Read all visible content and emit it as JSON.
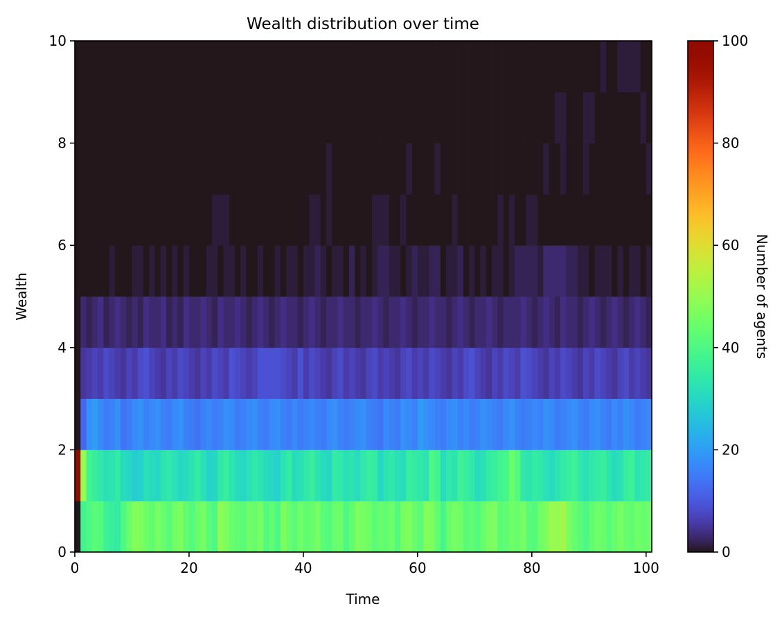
{
  "chart_data": {
    "type": "heatmap",
    "title": "Wealth distribution over time",
    "xlabel": "Time",
    "ylabel": "Wealth",
    "colorbar_label": "Number of agents",
    "colormap": "turbo",
    "xlim": [
      0,
      101
    ],
    "ylim": [
      0,
      10
    ],
    "clim": [
      0,
      100
    ],
    "xticks": [
      0,
      20,
      40,
      60,
      80,
      100
    ],
    "yticks": [
      0,
      2,
      4,
      6,
      8,
      10
    ],
    "colorbar_ticks": [
      0,
      20,
      40,
      60,
      80,
      100
    ],
    "time_steps": 101,
    "wealth_bins": [
      [
        0,
        1
      ],
      [
        1,
        2
      ],
      [
        2,
        3
      ],
      [
        3,
        4
      ],
      [
        4,
        5
      ],
      [
        5,
        6
      ],
      [
        6,
        7
      ],
      [
        7,
        8
      ],
      [
        8,
        9
      ],
      [
        9,
        10
      ]
    ],
    "counts_by_bin": {
      "0-1": [
        0,
        38,
        40,
        42,
        41,
        37,
        36,
        35,
        40,
        44,
        48,
        47,
        45,
        43,
        46,
        44,
        42,
        45,
        47,
        43,
        41,
        44,
        46,
        42,
        40,
        49,
        47,
        44,
        43,
        42,
        45,
        44,
        46,
        41,
        43,
        40,
        47,
        44,
        42,
        45,
        43,
        44,
        46,
        42,
        41,
        44,
        45,
        40,
        43,
        47,
        46,
        45,
        42,
        44,
        43,
        45,
        41,
        46,
        47,
        44,
        42,
        48,
        47,
        43,
        39,
        44,
        46,
        45,
        42,
        43,
        41,
        44,
        46,
        47,
        42,
        43,
        45,
        44,
        46,
        42,
        41,
        45,
        47,
        51,
        50,
        52,
        46,
        44,
        42,
        40,
        43,
        45,
        44,
        42,
        44,
        46,
        44,
        43,
        45,
        44,
        45
      ],
      "1-2": [
        100,
        50,
        38,
        36,
        34,
        32,
        33,
        35,
        31,
        30,
        28,
        29,
        32,
        31,
        30,
        33,
        34,
        32,
        30,
        31,
        33,
        35,
        32,
        29,
        30,
        34,
        36,
        33,
        31,
        30,
        32,
        34,
        33,
        31,
        30,
        29,
        33,
        35,
        31,
        32,
        34,
        36,
        33,
        31,
        30,
        35,
        34,
        32,
        33,
        31,
        34,
        36,
        35,
        30,
        33,
        34,
        32,
        31,
        36,
        35,
        34,
        33,
        40,
        38,
        31,
        34,
        33,
        37,
        36,
        34,
        31,
        32,
        35,
        36,
        38,
        39,
        44,
        41,
        34,
        33,
        35,
        34,
        32,
        31,
        33,
        35,
        36,
        37,
        34,
        32,
        34,
        35,
        36,
        33,
        31,
        32,
        36,
        37,
        33,
        34,
        35
      ],
      "2-3": [
        0,
        12,
        18,
        20,
        17,
        15,
        16,
        18,
        14,
        15,
        17,
        18,
        16,
        17,
        18,
        16,
        15,
        17,
        18,
        16,
        15,
        14,
        16,
        17,
        15,
        16,
        18,
        17,
        15,
        16,
        17,
        18,
        16,
        15,
        17,
        18,
        16,
        15,
        17,
        15,
        16,
        17,
        16,
        15,
        17,
        18,
        16,
        15,
        16,
        17,
        18,
        16,
        15,
        14,
        17,
        16,
        15,
        18,
        17,
        16,
        20,
        18,
        17,
        16,
        15,
        17,
        18,
        16,
        17,
        15,
        16,
        18,
        17,
        16,
        15,
        17,
        18,
        16,
        15,
        16,
        17,
        16,
        18,
        17,
        15,
        16,
        17,
        18,
        16,
        15,
        17,
        18,
        16,
        15,
        17,
        16,
        18,
        17,
        15,
        16,
        17
      ],
      "3-4": [
        0,
        5,
        6,
        7,
        6,
        8,
        7,
        6,
        5,
        7,
        6,
        8,
        9,
        7,
        6,
        5,
        7,
        6,
        8,
        7,
        6,
        5,
        7,
        6,
        8,
        7,
        6,
        9,
        8,
        7,
        6,
        7,
        9,
        9,
        9,
        9,
        8,
        7,
        6,
        9,
        6,
        8,
        7,
        6,
        5,
        7,
        8,
        6,
        7,
        6,
        5,
        7,
        8,
        6,
        7,
        6,
        5,
        7,
        8,
        6,
        7,
        6,
        8,
        7,
        6,
        5,
        7,
        6,
        8,
        9,
        7,
        6,
        5,
        7,
        6,
        8,
        7,
        6,
        9,
        8,
        7,
        6,
        5,
        7,
        6,
        8,
        7,
        6,
        5,
        7,
        6,
        8,
        7,
        6,
        5,
        7,
        8,
        6,
        7,
        6,
        5
      ],
      "4-5": [
        0,
        3,
        2,
        3,
        4,
        2,
        3,
        4,
        3,
        2,
        3,
        2,
        4,
        3,
        3,
        4,
        2,
        3,
        2,
        4,
        3,
        3,
        4,
        3,
        2,
        4,
        3,
        3,
        4,
        3,
        2,
        3,
        4,
        3,
        2,
        3,
        4,
        3,
        3,
        2,
        3,
        4,
        3,
        2,
        3,
        3,
        4,
        3,
        3,
        2,
        3,
        3,
        4,
        3,
        2,
        3,
        3,
        4,
        3,
        2,
        3,
        3,
        4,
        3,
        3,
        2,
        3,
        4,
        3,
        2,
        3,
        3,
        4,
        3,
        2,
        3,
        3,
        3,
        4,
        3,
        2,
        3,
        4,
        3,
        2,
        4,
        3,
        3,
        2,
        3,
        4,
        3,
        2,
        3,
        4,
        3,
        2,
        3,
        4,
        3,
        2
      ],
      "5-6": [
        0,
        0,
        0,
        0,
        0,
        0,
        1,
        0,
        0,
        0,
        1,
        1,
        0,
        1,
        0,
        1,
        0,
        1,
        0,
        1,
        0,
        0,
        0,
        1,
        1,
        0,
        1,
        1,
        0,
        1,
        0,
        0,
        1,
        0,
        0,
        1,
        0,
        1,
        1,
        0,
        1,
        1,
        2,
        1,
        0,
        1,
        1,
        0,
        2,
        0,
        1,
        0,
        1,
        2,
        2,
        1,
        1,
        0,
        1,
        2,
        1,
        1,
        2,
        2,
        0,
        1,
        1,
        2,
        0,
        1,
        0,
        1,
        0,
        1,
        1,
        0,
        1,
        2,
        2,
        2,
        2,
        1,
        3,
        3,
        3,
        3,
        2,
        2,
        1,
        1,
        0,
        1,
        1,
        1,
        0,
        1,
        0,
        1,
        1,
        0,
        1
      ],
      "6-7": [
        0,
        0,
        0,
        0,
        0,
        0,
        0,
        0,
        0,
        0,
        0,
        0,
        0,
        0,
        0,
        0,
        0,
        0,
        0,
        0,
        0,
        0,
        0,
        0,
        1,
        1,
        1,
        0,
        0,
        0,
        0,
        0,
        0,
        0,
        0,
        0,
        0,
        0,
        0,
        0,
        0,
        1,
        1,
        0,
        1,
        0,
        0,
        0,
        0,
        0,
        0,
        0,
        1,
        1,
        1,
        0,
        0,
        1,
        0,
        0,
        0,
        0,
        0,
        0,
        0,
        0,
        1,
        0,
        0,
        0,
        0,
        0,
        0,
        0,
        1,
        0,
        1,
        0,
        0,
        1,
        1,
        0,
        0,
        0,
        0,
        0,
        0,
        0,
        0,
        0,
        0,
        0,
        0,
        0,
        0,
        0,
        0,
        0,
        0,
        0,
        0
      ],
      "7-8": [
        0,
        0,
        0,
        0,
        0,
        0,
        0,
        0,
        0,
        0,
        0,
        0,
        0,
        0,
        0,
        0,
        0,
        0,
        0,
        0,
        0,
        0,
        0,
        0,
        0,
        0,
        0,
        0,
        0,
        0,
        0,
        0,
        0,
        0,
        0,
        0,
        0,
        0,
        0,
        0,
        0,
        0,
        0,
        0,
        1,
        0,
        0,
        0,
        0,
        0,
        0,
        0,
        0,
        0,
        0,
        0,
        0,
        0,
        1,
        0,
        0,
        0,
        0,
        1,
        0,
        0,
        0,
        0,
        0,
        0,
        0,
        0,
        0,
        0,
        0,
        0,
        0,
        0,
        0,
        0,
        0,
        0,
        1,
        0,
        0,
        1,
        0,
        0,
        0,
        1,
        0,
        0,
        0,
        0,
        0,
        0,
        0,
        0,
        0,
        0,
        1
      ],
      "8-9": [
        0,
        0,
        0,
        0,
        0,
        0,
        0,
        0,
        0,
        0,
        0,
        0,
        0,
        0,
        0,
        0,
        0,
        0,
        0,
        0,
        0,
        0,
        0,
        0,
        0,
        0,
        0,
        0,
        0,
        0,
        0,
        0,
        0,
        0,
        0,
        0,
        0,
        0,
        0,
        0,
        0,
        0,
        0,
        0,
        0,
        0,
        0,
        0,
        0,
        0,
        0,
        0,
        0,
        0,
        0,
        0,
        0,
        0,
        0,
        0,
        0,
        0,
        0,
        0,
        0,
        0,
        0,
        0,
        0,
        0,
        0,
        0,
        0,
        0,
        0,
        0,
        0,
        0,
        0,
        0,
        0,
        0,
        0,
        0,
        1,
        1,
        0,
        0,
        0,
        1,
        1,
        0,
        0,
        0,
        0,
        0,
        0,
        0,
        0,
        1,
        0
      ],
      "9-10": [
        0,
        0,
        0,
        0,
        0,
        0,
        0,
        0,
        0,
        0,
        0,
        0,
        0,
        0,
        0,
        0,
        0,
        0,
        0,
        0,
        0,
        0,
        0,
        0,
        0,
        0,
        0,
        0,
        0,
        0,
        0,
        0,
        0,
        0,
        0,
        0,
        0,
        0,
        0,
        0,
        0,
        0,
        0,
        0,
        0,
        0,
        0,
        0,
        0,
        0,
        0,
        0,
        0,
        0,
        0,
        0,
        0,
        0,
        0,
        0,
        0,
        0,
        0,
        0,
        0,
        0,
        0,
        0,
        0,
        0,
        0,
        0,
        0,
        0,
        0,
        0,
        0,
        0,
        0,
        0,
        0,
        0,
        0,
        0,
        0,
        0,
        0,
        0,
        0,
        0,
        0,
        0,
        1,
        0,
        0,
        1,
        1,
        1,
        1,
        0,
        0
      ]
    }
  }
}
